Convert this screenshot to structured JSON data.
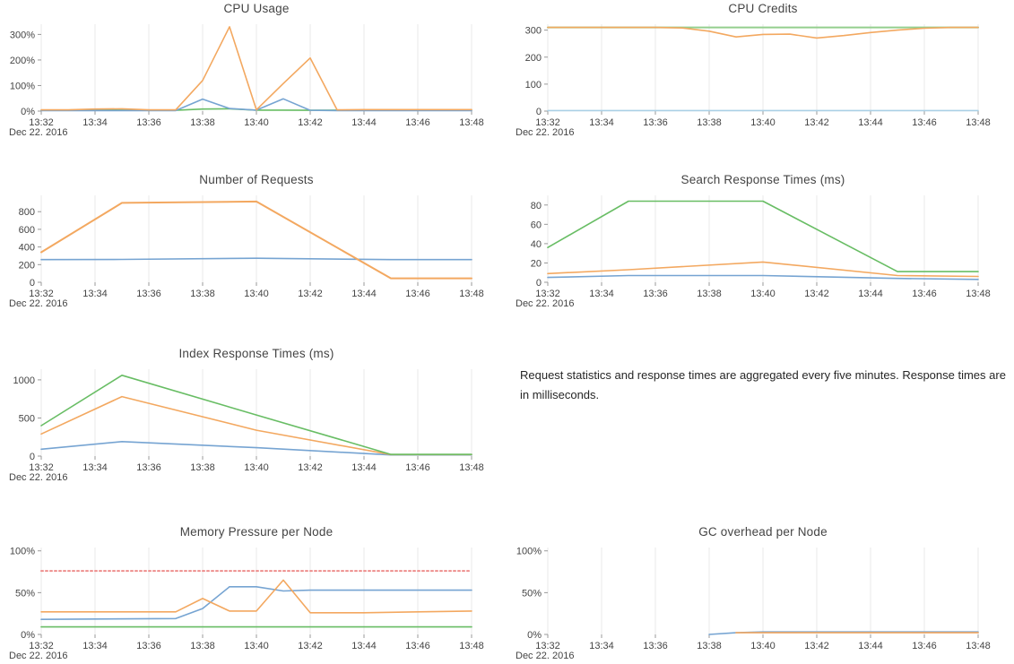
{
  "style": {
    "background": "#ffffff",
    "grid_color": "#e8e8e8",
    "tick_color": "#999999",
    "tick_text_color": "#444444",
    "title_color": "#444444",
    "blue": "#76a4d2",
    "orange": "#f3a860",
    "green": "#68bd64",
    "pale_green": "#94cf8e",
    "pale_blue": "#a9cfe5",
    "threshold_red": "#ed8e8d"
  },
  "axis": {
    "date_label": "Dec 22. 2016",
    "x_tick_labels": [
      "13:32",
      "13:34",
      "13:36",
      "13:38",
      "13:40",
      "13:42",
      "13:44",
      "13:46",
      "13:48"
    ]
  },
  "note": {
    "text": "Request statistics and response times are aggregated every five minutes. Response times are in milliseconds."
  },
  "chart_data": [
    {
      "id": "cpu-usage",
      "title": "CPU Usage",
      "type": "line",
      "x_tick_labels": [
        "13:32",
        "13:34",
        "13:36",
        "13:38",
        "13:40",
        "13:42",
        "13:44",
        "13:46",
        "13:48"
      ],
      "x_range_minutes": [
        0,
        16
      ],
      "ylim": [
        0,
        340
      ],
      "y_ticks": [
        {
          "v": 0,
          "label": "0%"
        },
        {
          "v": 100,
          "label": "100%"
        },
        {
          "v": 200,
          "label": "200%"
        },
        {
          "v": 300,
          "label": "300%"
        }
      ],
      "series": [
        {
          "name": "green",
          "color": "#68bd64",
          "points": [
            [
              0,
              3
            ],
            [
              2,
              5
            ],
            [
              4,
              3
            ],
            [
              5,
              3
            ],
            [
              6,
              8
            ],
            [
              7,
              9
            ],
            [
              8,
              4
            ],
            [
              9,
              4
            ],
            [
              10,
              3
            ],
            [
              12,
              4
            ],
            [
              14,
              4
            ],
            [
              16,
              4
            ]
          ]
        },
        {
          "name": "blue",
          "color": "#76a4d2",
          "points": [
            [
              0,
              2
            ],
            [
              1,
              2
            ],
            [
              2,
              2
            ],
            [
              3,
              2
            ],
            [
              4,
              2
            ],
            [
              5,
              2
            ],
            [
              6,
              47
            ],
            [
              7,
              10
            ],
            [
              8,
              4
            ],
            [
              9,
              48
            ],
            [
              10,
              3
            ],
            [
              11,
              2
            ],
            [
              12,
              2
            ],
            [
              13,
              2
            ],
            [
              14,
              2
            ],
            [
              15,
              2
            ],
            [
              16,
              2
            ]
          ]
        },
        {
          "name": "orange",
          "color": "#f3a860",
          "points": [
            [
              0,
              5
            ],
            [
              1,
              5
            ],
            [
              2,
              8
            ],
            [
              3,
              9
            ],
            [
              4,
              5
            ],
            [
              5,
              5
            ],
            [
              6,
              120
            ],
            [
              7,
              330
            ],
            [
              8,
              5
            ],
            [
              9,
              108
            ],
            [
              10,
              208
            ],
            [
              11,
              5
            ],
            [
              12,
              6
            ],
            [
              13,
              6
            ],
            [
              14,
              6
            ],
            [
              15,
              6
            ],
            [
              16,
              6
            ]
          ]
        }
      ]
    },
    {
      "id": "cpu-credits",
      "title": "CPU Credits",
      "type": "line",
      "x_tick_labels": [
        "13:32",
        "13:34",
        "13:36",
        "13:38",
        "13:40",
        "13:42",
        "13:44",
        "13:46",
        "13:48"
      ],
      "x_range_minutes": [
        0,
        16
      ],
      "ylim": [
        0,
        322
      ],
      "y_ticks": [
        {
          "v": 0,
          "label": "0"
        },
        {
          "v": 100,
          "label": "100"
        },
        {
          "v": 200,
          "label": "200"
        },
        {
          "v": 300,
          "label": "300"
        }
      ],
      "series": [
        {
          "name": "pale-blue-zero",
          "color": "#a9cfe5",
          "points": [
            [
              0,
              2
            ],
            [
              16,
              2
            ]
          ]
        },
        {
          "name": "green",
          "color": "#94cf8e",
          "width": 2,
          "points": [
            [
              0,
              310
            ],
            [
              16,
              310
            ]
          ]
        },
        {
          "name": "orange",
          "color": "#f3a860",
          "points": [
            [
              0,
              310
            ],
            [
              4,
              310
            ],
            [
              5,
              308
            ],
            [
              6,
              296
            ],
            [
              7,
              275
            ],
            [
              8,
              284
            ],
            [
              9,
              285
            ],
            [
              10,
              271
            ],
            [
              11,
              280
            ],
            [
              12,
              291
            ],
            [
              13,
              300
            ],
            [
              14,
              307
            ],
            [
              15,
              310
            ],
            [
              16,
              310
            ]
          ]
        }
      ]
    },
    {
      "id": "number-of-requests",
      "title": "Number of Requests",
      "type": "line",
      "x_tick_labels": [
        "13:32",
        "13:34",
        "13:36",
        "13:38",
        "13:40",
        "13:42",
        "13:44",
        "13:46",
        "13:48"
      ],
      "x_range_minutes": [
        0,
        16
      ],
      "ylim": [
        0,
        985
      ],
      "y_ticks": [
        {
          "v": 0,
          "label": "0"
        },
        {
          "v": 200,
          "label": "200"
        },
        {
          "v": 400,
          "label": "400"
        },
        {
          "v": 600,
          "label": "600"
        },
        {
          "v": 800,
          "label": "800"
        }
      ],
      "series": [
        {
          "name": "blue",
          "color": "#76a4d2",
          "points": [
            [
              0,
              257
            ],
            [
              3,
              259
            ],
            [
              8,
              272
            ],
            [
              13,
              257
            ],
            [
              16,
              257
            ]
          ]
        },
        {
          "name": "orange",
          "color": "#f3a860",
          "width": 2,
          "points": [
            [
              0,
              340
            ],
            [
              3,
              900
            ],
            [
              8,
              915
            ],
            [
              13,
              45
            ],
            [
              16,
              45
            ]
          ]
        }
      ]
    },
    {
      "id": "search-response-times",
      "title": "Search Response Times (ms)",
      "type": "line",
      "x_tick_labels": [
        "13:32",
        "13:34",
        "13:36",
        "13:38",
        "13:40",
        "13:42",
        "13:44",
        "13:46",
        "13:48"
      ],
      "x_range_minutes": [
        0,
        16
      ],
      "ylim": [
        0,
        90
      ],
      "y_ticks": [
        {
          "v": 0,
          "label": "0"
        },
        {
          "v": 20,
          "label": "20"
        },
        {
          "v": 40,
          "label": "40"
        },
        {
          "v": 60,
          "label": "60"
        },
        {
          "v": 80,
          "label": "80"
        }
      ],
      "series": [
        {
          "name": "blue",
          "color": "#76a4d2",
          "points": [
            [
              0,
              5
            ],
            [
              3,
              7
            ],
            [
              8,
              7
            ],
            [
              13,
              4
            ],
            [
              16,
              3
            ]
          ]
        },
        {
          "name": "orange",
          "color": "#f3a860",
          "points": [
            [
              0,
              9
            ],
            [
              3,
              13
            ],
            [
              8,
              21
            ],
            [
              13,
              7
            ],
            [
              16,
              6
            ]
          ]
        },
        {
          "name": "green",
          "color": "#68bd64",
          "points": [
            [
              0,
              36
            ],
            [
              3,
              84
            ],
            [
              8,
              84
            ],
            [
              13,
              11
            ],
            [
              16,
              11
            ]
          ]
        }
      ]
    },
    {
      "id": "index-response-times",
      "title": "Index Response Times (ms)",
      "type": "line",
      "x_tick_labels": [
        "13:32",
        "13:34",
        "13:36",
        "13:38",
        "13:40",
        "13:42",
        "13:44",
        "13:46",
        "13:48"
      ],
      "x_range_minutes": [
        0,
        16
      ],
      "ylim": [
        0,
        1140
      ],
      "y_ticks": [
        {
          "v": 0,
          "label": "0"
        },
        {
          "v": 500,
          "label": "500"
        },
        {
          "v": 1000,
          "label": "1000"
        }
      ],
      "series": [
        {
          "name": "blue",
          "color": "#76a4d2",
          "points": [
            [
              0,
              90
            ],
            [
              3,
              190
            ],
            [
              8,
              110
            ],
            [
              13,
              15
            ],
            [
              16,
              15
            ]
          ]
        },
        {
          "name": "orange",
          "color": "#f3a860",
          "points": [
            [
              0,
              290
            ],
            [
              3,
              780
            ],
            [
              8,
              340
            ],
            [
              13,
              20
            ],
            [
              16,
              20
            ]
          ]
        },
        {
          "name": "green",
          "color": "#68bd64",
          "points": [
            [
              0,
              400
            ],
            [
              3,
              1060
            ],
            [
              8,
              540
            ],
            [
              13,
              22
            ],
            [
              16,
              22
            ]
          ]
        }
      ]
    },
    {
      "id": "memory-pressure-per-node",
      "title": "Memory Pressure per Node",
      "type": "line",
      "x_tick_labels": [
        "13:32",
        "13:34",
        "13:36",
        "13:38",
        "13:40",
        "13:42",
        "13:44",
        "13:46",
        "13:48"
      ],
      "x_range_minutes": [
        0,
        16
      ],
      "ylim": [
        0,
        104
      ],
      "y_ticks": [
        {
          "v": 0,
          "label": "0%"
        },
        {
          "v": 50,
          "label": "50%"
        },
        {
          "v": 100,
          "label": "100%"
        }
      ],
      "series": [
        {
          "name": "threshold",
          "color": "#ed8e8d",
          "width": 2,
          "dash": "2,3",
          "points": [
            [
              0,
              76
            ],
            [
              16,
              76
            ]
          ]
        },
        {
          "name": "green",
          "color": "#68bd64",
          "points": [
            [
              0,
              9
            ],
            [
              16,
              9
            ]
          ]
        },
        {
          "name": "blue",
          "color": "#76a4d2",
          "points": [
            [
              0,
              18
            ],
            [
              5,
              19
            ],
            [
              6,
              31
            ],
            [
              7,
              57
            ],
            [
              8,
              57
            ],
            [
              9,
              52
            ],
            [
              10,
              53
            ],
            [
              16,
              53
            ]
          ]
        },
        {
          "name": "orange",
          "color": "#f3a860",
          "points": [
            [
              0,
              27
            ],
            [
              5,
              27
            ],
            [
              6,
              43
            ],
            [
              7,
              28
            ],
            [
              8,
              28
            ],
            [
              9,
              65
            ],
            [
              10,
              26
            ],
            [
              12,
              26
            ],
            [
              14,
              27
            ],
            [
              16,
              28
            ]
          ]
        }
      ]
    },
    {
      "id": "gc-overhead-per-node",
      "title": "GC overhead per Node",
      "type": "line",
      "x_tick_labels": [
        "13:32",
        "13:34",
        "13:36",
        "13:38",
        "13:40",
        "13:42",
        "13:44",
        "13:46",
        "13:48"
      ],
      "x_range_minutes": [
        0,
        16
      ],
      "ylim": [
        0,
        104
      ],
      "y_ticks": [
        {
          "v": 0,
          "label": "0%"
        },
        {
          "v": 50,
          "label": "50%"
        },
        {
          "v": 100,
          "label": "100%"
        }
      ],
      "series": [
        {
          "name": "blue",
          "color": "#76a4d2",
          "points": [
            [
              6,
              0
            ],
            [
              7,
              2
            ],
            [
              8,
              3
            ],
            [
              16,
              3
            ]
          ]
        },
        {
          "name": "orange",
          "color": "#f3a860",
          "points": [
            [
              7,
              2
            ],
            [
              10,
              2
            ],
            [
              16,
              2
            ]
          ]
        }
      ]
    }
  ]
}
